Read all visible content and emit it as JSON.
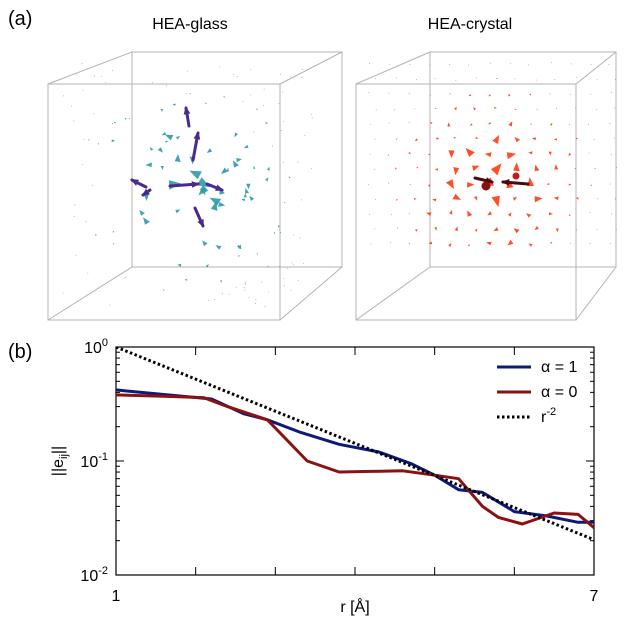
{
  "panel_a": {
    "label": "(a)",
    "left_title": "HEA-glass",
    "right_title": "HEA-crystal",
    "colors": {
      "glass": "#2e9aa6",
      "crystal": "#ff3c12",
      "glass_arrow": "#4a2a8a",
      "crystal_arrow": "#4a0b0b",
      "box": "#b3b3b3"
    }
  },
  "chart_data": {
    "panel_label": "(b)",
    "type": "line",
    "xlabel": "r [Å]",
    "ylabel_base": "||e",
    "ylabel_sub": "ij",
    "ylabel_end": "||",
    "xscale": "linear",
    "yscale": "log",
    "xlim": [
      1,
      7
    ],
    "ylim": [
      0.01,
      1
    ],
    "x_ticks": [
      {
        "value": 1,
        "label": "1"
      },
      {
        "value": 7,
        "label": "7"
      }
    ],
    "y_ticks": [
      {
        "value": 1,
        "base": "10",
        "exp": "0"
      },
      {
        "value": 0.1,
        "base": "10",
        "exp": "-1"
      },
      {
        "value": 0.01,
        "base": "10",
        "exp": "-2"
      }
    ],
    "legend_position": "top-right",
    "series": [
      {
        "name": "α = 1",
        "color": "#0d1a7a",
        "style": "solid",
        "x": [
          1.0,
          1.15,
          2.2,
          2.6,
          2.9,
          3.3,
          3.8,
          4.3,
          4.7,
          5.0,
          5.3,
          5.6,
          6.0,
          6.4,
          6.8,
          7.0
        ],
        "y": [
          0.42,
          0.41,
          0.35,
          0.26,
          0.23,
          0.18,
          0.14,
          0.12,
          0.095,
          0.075,
          0.056,
          0.053,
          0.036,
          0.033,
          0.029,
          0.029
        ]
      },
      {
        "name": "α = 0",
        "color": "#8a1212",
        "style": "solid",
        "x": [
          1.0,
          1.6,
          2.1,
          2.4,
          2.9,
          3.4,
          3.8,
          4.2,
          4.6,
          5.0,
          5.3,
          5.6,
          5.8,
          6.1,
          6.5,
          6.8,
          7.0
        ],
        "y": [
          0.38,
          0.37,
          0.36,
          0.3,
          0.23,
          0.1,
          0.08,
          0.081,
          0.082,
          0.075,
          0.07,
          0.04,
          0.032,
          0.028,
          0.035,
          0.034,
          0.026
        ]
      },
      {
        "name": "r",
        "name_sup": "-2",
        "color": "#000000",
        "style": "dotted",
        "x": [
          1.0,
          7.0
        ],
        "y": [
          1.0,
          0.0204
        ]
      }
    ]
  }
}
